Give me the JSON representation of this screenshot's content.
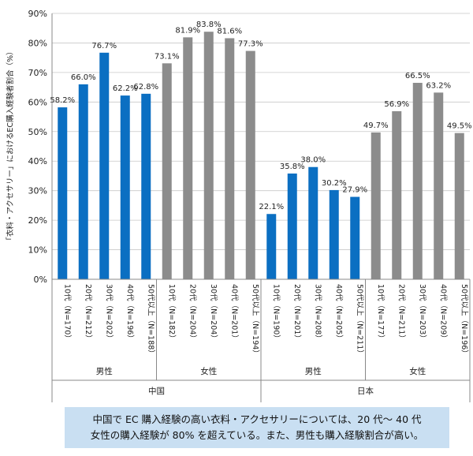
{
  "chart_data": {
    "type": "bar",
    "ylabel": "「衣料・アクセサリー」におけるEC購入経験者割合（%）",
    "ylim": [
      0,
      90
    ],
    "yticks": [
      "0%",
      "10%",
      "20%",
      "30%",
      "40%",
      "50%",
      "60%",
      "70%",
      "80%",
      "90%"
    ],
    "grid": true,
    "categories": [
      "10代（N=170）",
      "20代（N=212）",
      "30代（N=202）",
      "40代（N=196）",
      "50代以上（N=188）",
      "10代（N=182）",
      "20代（N=204）",
      "30代（N=204）",
      "40代（N=201）",
      "50代以上（N=194）",
      "10代（N=190）",
      "20代（N=201）",
      "30代（N=208）",
      "40代（N=205）",
      "50代以上（N=211）",
      "10代（N=177）",
      "20代（N=211）",
      "30代（N=203）",
      "40代（N=209）",
      "50代以上（N=196）"
    ],
    "values": [
      58.2,
      66.0,
      76.7,
      62.2,
      62.8,
      73.1,
      81.9,
      83.8,
      81.6,
      77.3,
      22.1,
      35.8,
      38.0,
      30.2,
      27.9,
      49.7,
      56.9,
      66.5,
      63.2,
      49.5
    ],
    "value_labels": [
      "58.2%",
      "66.0%",
      "76.7%",
      "62.2%",
      "62.8%",
      "73.1%",
      "81.9%",
      "83.8%",
      "81.6%",
      "77.3%",
      "22.1%",
      "35.8%",
      "38.0%",
      "30.2%",
      "27.9%",
      "49.7%",
      "56.9%",
      "66.5%",
      "63.2%",
      "49.5%"
    ],
    "gender_groups": [
      "男性",
      "女性",
      "男性",
      "女性"
    ],
    "country_groups": [
      "中国",
      "日本"
    ],
    "colors": {
      "male": "#0b6fc2",
      "female": "#8c8c8c",
      "grid": "#c8c8c8",
      "axis": "#888888"
    }
  },
  "caption": {
    "line1": "中国で EC 購入経験の高い衣料・アクセサリーについては、20 代～ 40 代",
    "line2": "女性の購入経験が 80% を超えている。また、男性も購入経験割合が高い。"
  }
}
